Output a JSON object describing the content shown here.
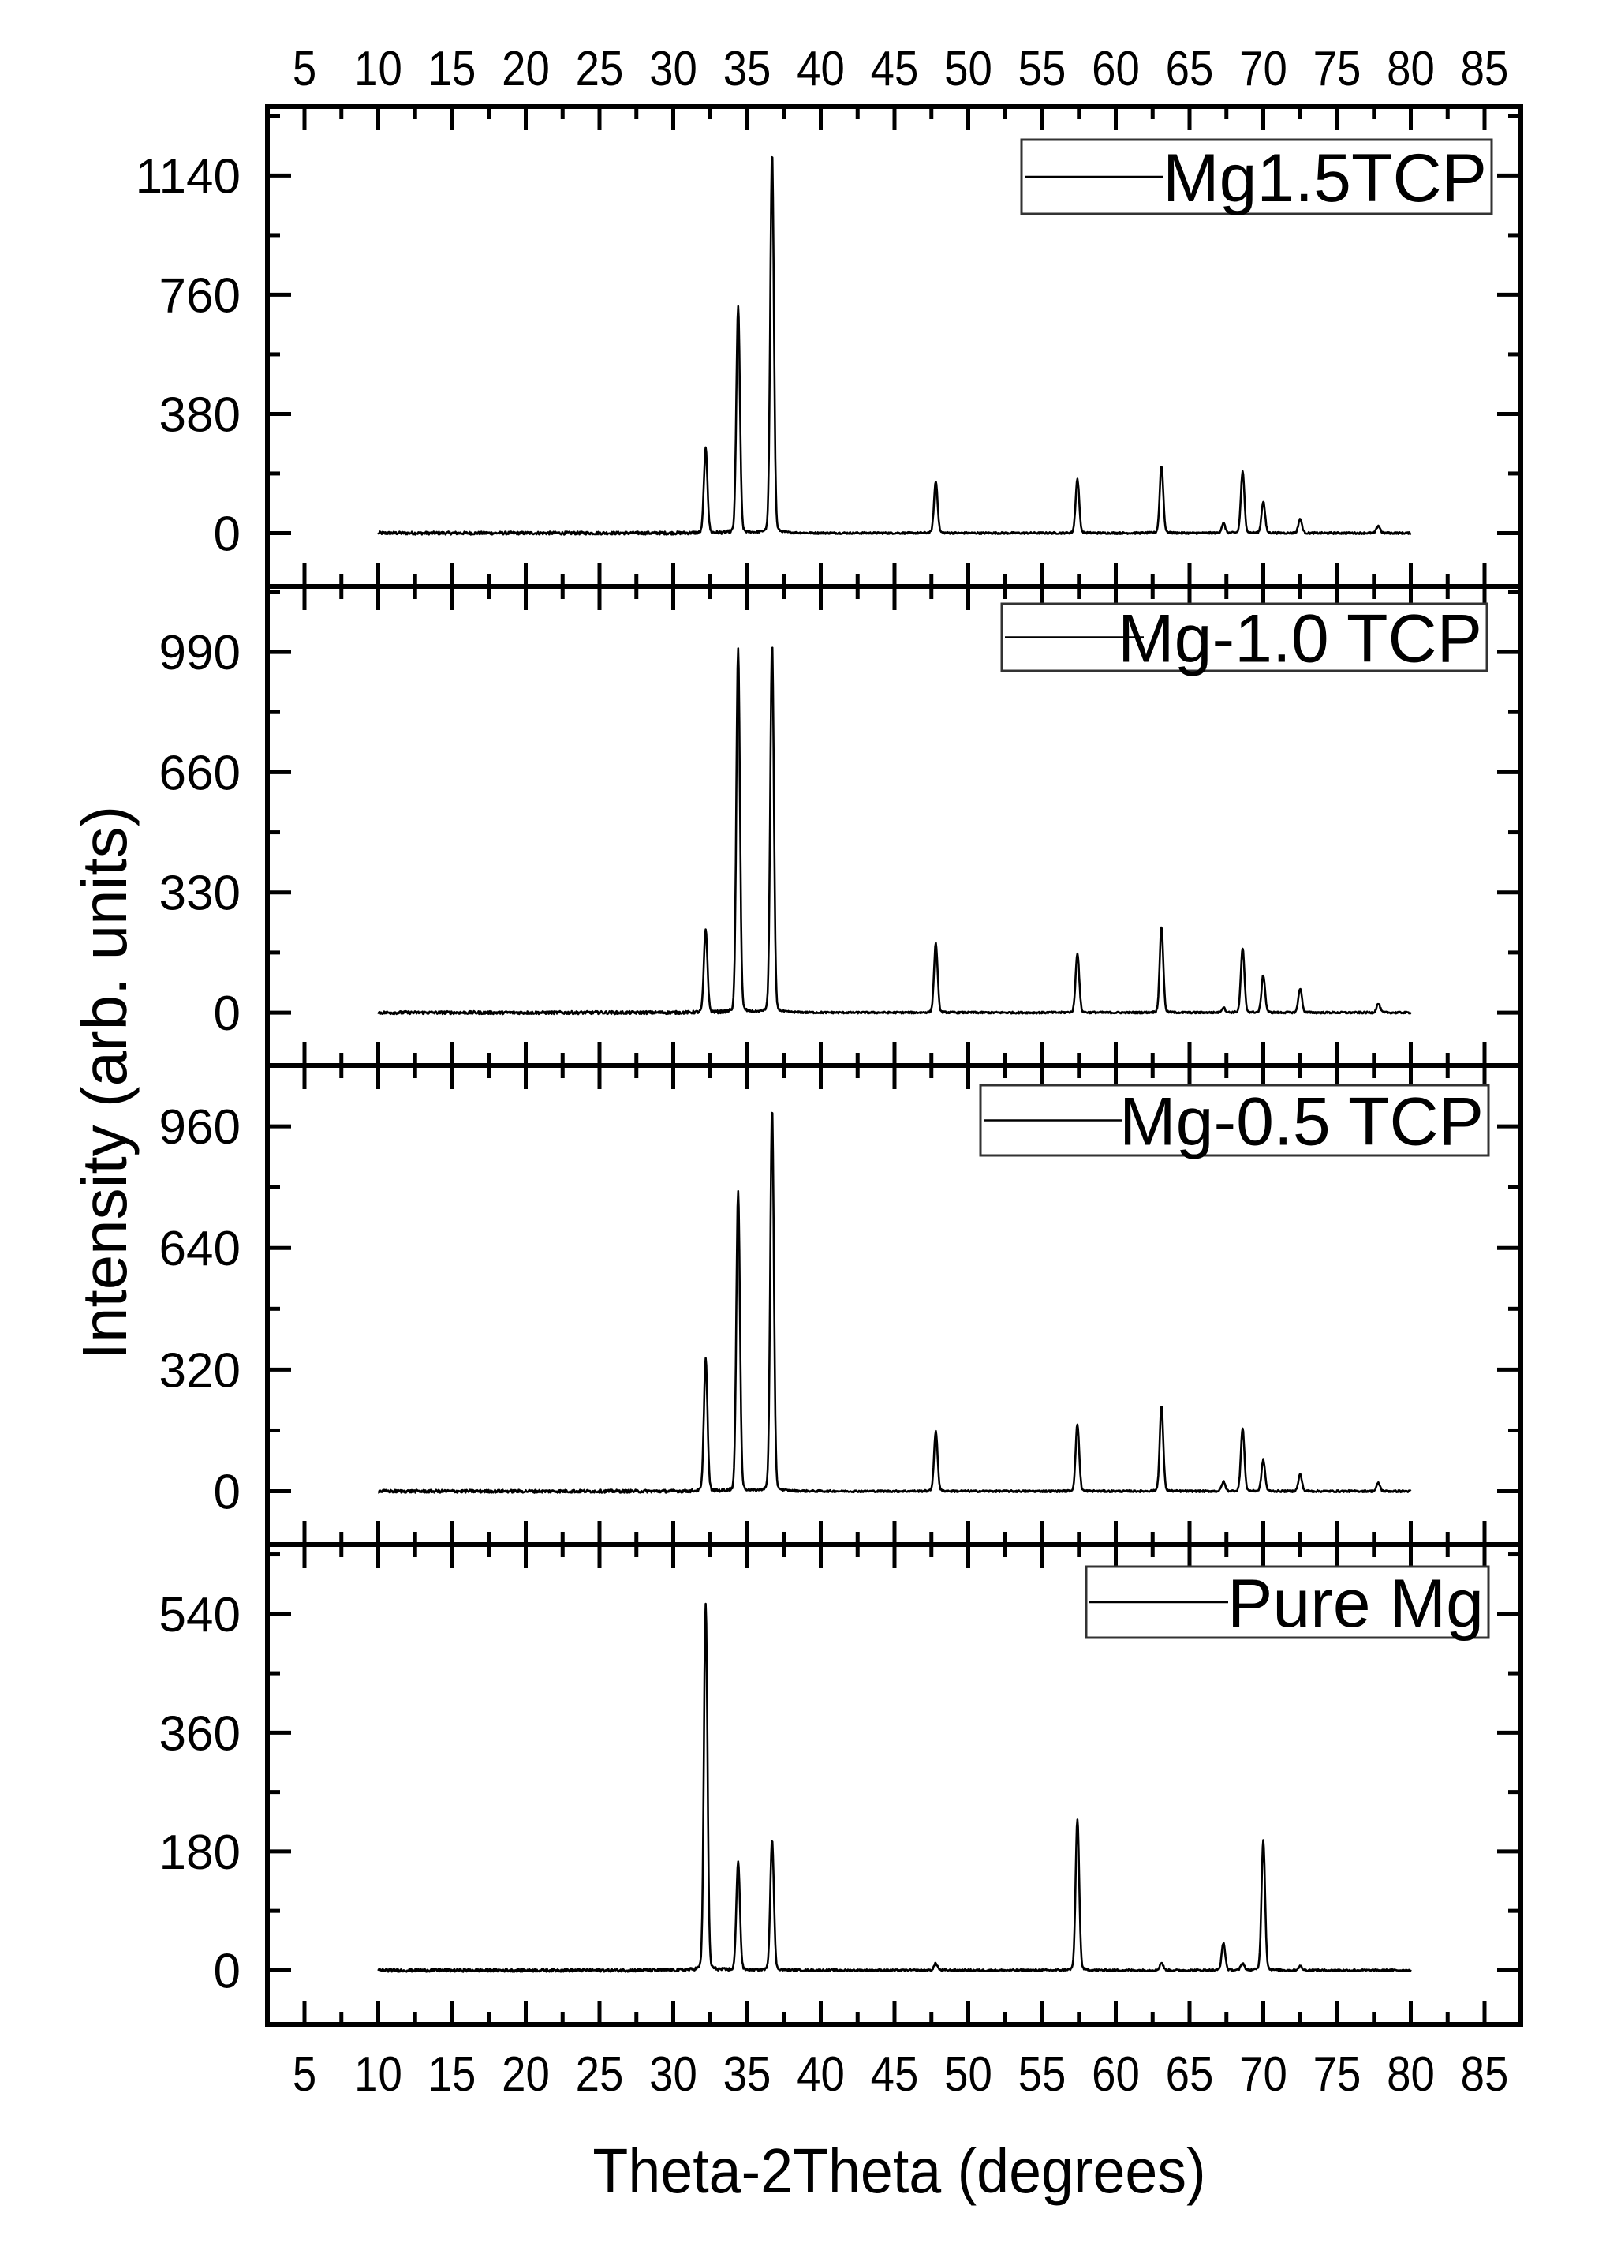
{
  "figure": {
    "x_axis_title": "Theta-2Theta (degrees)",
    "y_axis_title": "Intensity (arb. units)",
    "x_tick_labels": [
      "5",
      "10",
      "15",
      "20",
      "25",
      "30",
      "35",
      "40",
      "45",
      "50",
      "55",
      "60",
      "65",
      "70",
      "75",
      "80",
      "85"
    ]
  },
  "chart_data": {
    "type": "line",
    "title": "",
    "xlabel": "Theta-2Theta (degrees)",
    "ylabel": "Intensity (arb. units)",
    "xlim": [
      2.5,
      87.5
    ],
    "x_ticks": [
      5,
      10,
      15,
      20,
      25,
      30,
      35,
      40,
      45,
      50,
      55,
      60,
      65,
      70,
      75,
      80,
      85
    ],
    "x_range_of_data": [
      10,
      80
    ],
    "grid": false,
    "legend_position": "upper right (per panel)",
    "layout": "4 vertically stacked panels sharing x-axis, x tick labels on top and bottom",
    "panels": [
      {
        "legend": "Mg1.5TCP",
        "y_ticks": [
          0,
          380,
          760,
          1140
        ],
        "ylim": [
          -170,
          1360
        ],
        "peaks": [
          {
            "x": 32.2,
            "y": 260
          },
          {
            "x": 34.4,
            "y": 700
          },
          {
            "x": 36.7,
            "y": 1180
          },
          {
            "x": 47.8,
            "y": 160
          },
          {
            "x": 57.4,
            "y": 167
          },
          {
            "x": 63.1,
            "y": 209
          },
          {
            "x": 67.3,
            "y": 30
          },
          {
            "x": 68.6,
            "y": 189
          },
          {
            "x": 70.0,
            "y": 98
          },
          {
            "x": 72.5,
            "y": 44
          },
          {
            "x": 77.8,
            "y": 23
          }
        ]
      },
      {
        "legend": "Mg-1.0 TCP",
        "y_ticks": [
          0,
          330,
          660,
          990
        ],
        "ylim": [
          -145,
          1170
        ],
        "peaks": [
          {
            "x": 32.2,
            "y": 221
          },
          {
            "x": 34.4,
            "y": 968
          },
          {
            "x": 36.7,
            "y": 986
          },
          {
            "x": 47.8,
            "y": 184
          },
          {
            "x": 57.4,
            "y": 159
          },
          {
            "x": 63.1,
            "y": 229
          },
          {
            "x": 67.3,
            "y": 13
          },
          {
            "x": 68.6,
            "y": 171
          },
          {
            "x": 70.0,
            "y": 100
          },
          {
            "x": 72.5,
            "y": 65
          },
          {
            "x": 77.8,
            "y": 24
          }
        ]
      },
      {
        "legend": "Mg-0.5 TCP",
        "y_ticks": [
          0,
          320,
          640,
          960
        ],
        "ylim": [
          -140,
          1120
        ],
        "peaks": [
          {
            "x": 32.2,
            "y": 338
          },
          {
            "x": 34.4,
            "y": 769
          },
          {
            "x": 36.7,
            "y": 980
          },
          {
            "x": 47.8,
            "y": 152
          },
          {
            "x": 57.4,
            "y": 171
          },
          {
            "x": 63.1,
            "y": 217
          },
          {
            "x": 67.3,
            "y": 24
          },
          {
            "x": 68.6,
            "y": 160
          },
          {
            "x": 70.0,
            "y": 80
          },
          {
            "x": 72.5,
            "y": 43
          },
          {
            "x": 77.8,
            "y": 21
          }
        ]
      },
      {
        "legend": "Pure Mg",
        "y_ticks": [
          0,
          180,
          360,
          540
        ],
        "ylim": [
          -82,
          645
        ],
        "peaks": [
          {
            "x": 32.2,
            "y": 540
          },
          {
            "x": 34.4,
            "y": 161
          },
          {
            "x": 36.7,
            "y": 193
          },
          {
            "x": 47.8,
            "y": 10
          },
          {
            "x": 57.4,
            "y": 222
          },
          {
            "x": 63.1,
            "y": 11
          },
          {
            "x": 67.3,
            "y": 40
          },
          {
            "x": 68.6,
            "y": 10
          },
          {
            "x": 70.0,
            "y": 192
          },
          {
            "x": 72.5,
            "y": 6
          }
        ]
      }
    ]
  }
}
